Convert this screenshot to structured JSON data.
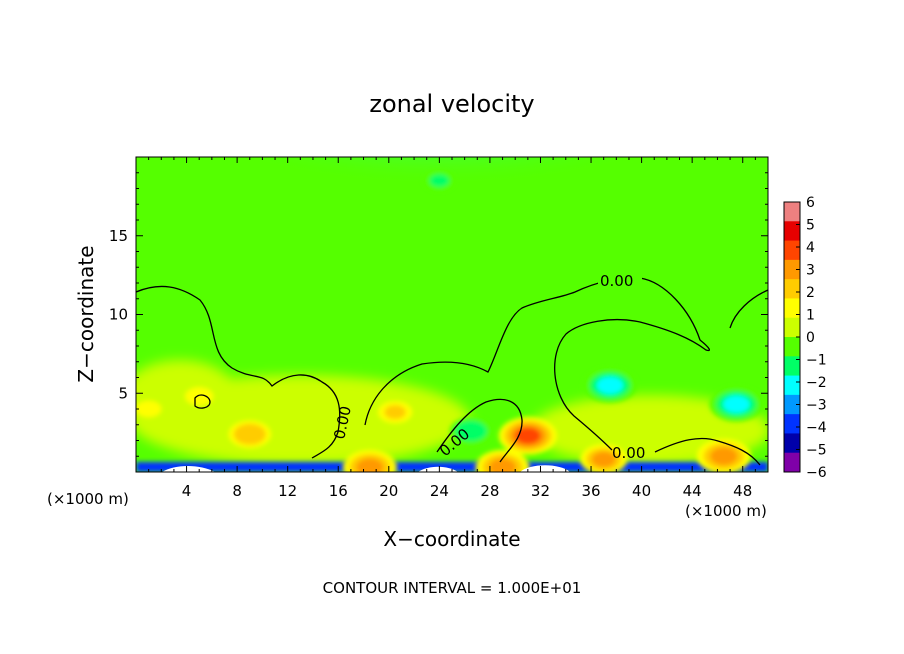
{
  "chart_data": {
    "type": "heatmap",
    "title": "zonal velocity",
    "xlabel": "X−coordinate",
    "ylabel": "Z−coordinate",
    "x_unit_left": "(×1000 m)",
    "x_unit_right": "(×1000 m)",
    "xlim": [
      0,
      50
    ],
    "ylim": [
      0,
      20
    ],
    "x_ticks": [
      4,
      8,
      12,
      16,
      20,
      24,
      28,
      32,
      36,
      40,
      44,
      48
    ],
    "y_ticks": [
      5,
      10,
      15
    ],
    "footer": "CONTOUR INTERVAL = 1.000E+01",
    "contour_label": "0.00",
    "contour_labels": [
      "0.00",
      "0.00",
      "0.00",
      "0.00"
    ],
    "colorbar": {
      "ticks": [
        6,
        5,
        4,
        3,
        2,
        1,
        0,
        -1,
        -2,
        -3,
        -4,
        -5,
        -6
      ],
      "tick_labels": [
        "6",
        "5",
        "4",
        "3",
        "2",
        "1",
        "0",
        "−1",
        "−2",
        "−3",
        "−4",
        "−5",
        "−6"
      ],
      "colors": [
        "#ee8080",
        "#e60000",
        "#ff4500",
        "#ff9900",
        "#ffcc00",
        "#ffff00",
        "#ccff00",
        "#55ff00",
        "#00ff66",
        "#00ffff",
        "#0099ff",
        "#0033ff",
        "#0000aa",
        "#7f00a8"
      ]
    },
    "anomalies": [
      {
        "x": 37.5,
        "z": 5.5,
        "value": -3.0
      },
      {
        "x": 47.5,
        "z": 4.3,
        "value": -3.0
      },
      {
        "x": 26.5,
        "z": 2.6,
        "value": -2.2
      },
      {
        "x": 31.0,
        "z": 2.3,
        "value": 3.3
      },
      {
        "x": 9.0,
        "z": 2.4,
        "value": 2.2
      },
      {
        "x": 20.5,
        "z": 3.8,
        "value": 1.6
      },
      {
        "x": 5.0,
        "z": 4.8,
        "value": 1.2
      },
      {
        "x": 1.0,
        "z": 4.0,
        "value": 1.0
      },
      {
        "x": 24.0,
        "z": 18.5,
        "value": -1.4
      },
      {
        "x": 18.5,
        "z": 0.3,
        "value": 3.0
      },
      {
        "x": 29.0,
        "z": 0.3,
        "value": 3.0
      },
      {
        "x": 37.0,
        "z": 0.8,
        "value": 2.5
      },
      {
        "x": 46.5,
        "z": 1.0,
        "value": 3.0
      }
    ]
  }
}
